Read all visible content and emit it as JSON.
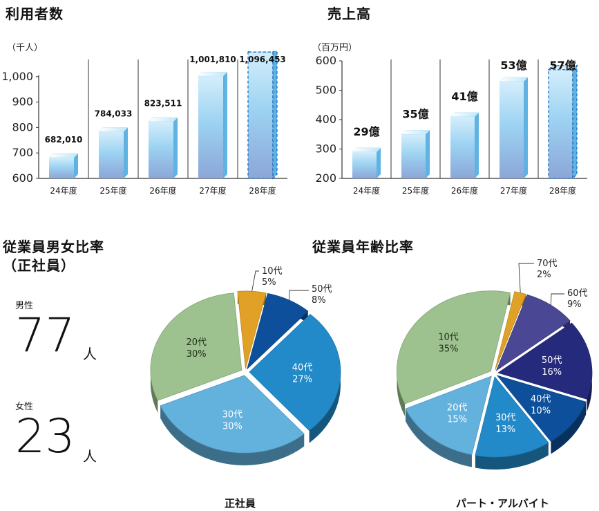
{
  "chart_data": [
    {
      "type": "bar",
      "title": "利用者数",
      "ylabel": "（千人）",
      "categories": [
        "24年度",
        "25年度",
        "26年度",
        "27年度",
        "28年度"
      ],
      "values": [
        682010,
        784033,
        823511,
        1001810,
        1096453
      ],
      "value_labels": [
        "682,010",
        "784,033",
        "823,511",
        "1,001,810",
        "1,096,453"
      ],
      "ylim": [
        600,
        1100
      ],
      "yticks": [
        600,
        700,
        800,
        900,
        1000
      ],
      "ytick_labels": [
        "600",
        "700",
        "800",
        "900",
        "1,000"
      ],
      "value_scale": 1000,
      "projected_index": 4
    },
    {
      "type": "bar",
      "title": "売上高",
      "ylabel": "（百万円）",
      "categories": [
        "24年度",
        "25年度",
        "26年度",
        "27年度",
        "28年度"
      ],
      "values": [
        290,
        350,
        410,
        530,
        570
      ],
      "value_labels": [
        "29億",
        "35億",
        "41億",
        "53億",
        "57億"
      ],
      "ylim": [
        200,
        600
      ],
      "yticks": [
        200,
        300,
        400,
        500,
        600
      ],
      "ytick_labels": [
        "200",
        "300",
        "400",
        "500",
        "600"
      ],
      "value_scale": 1,
      "projected_index": 4
    },
    {
      "type": "pie",
      "title": "正社員",
      "slices": [
        {
          "label": "10代",
          "value": 5,
          "pct": "5%",
          "color": "#e0a126",
          "callout": true
        },
        {
          "label": "50代",
          "value": 8,
          "pct": "8%",
          "color": "#0d4f9a",
          "callout": true
        },
        {
          "label": "40代",
          "value": 27,
          "pct": "27%",
          "color": "#238ac9",
          "callout": false
        },
        {
          "label": "30代",
          "value": 30,
          "pct": "30%",
          "color": "#63b1dd",
          "callout": false
        },
        {
          "label": "20代",
          "value": 30,
          "pct": "30%",
          "color": "#9dc28f",
          "callout": false
        }
      ]
    },
    {
      "type": "pie",
      "title": "パート・アルバイト",
      "slices": [
        {
          "label": "70代",
          "value": 2,
          "pct": "2%",
          "color": "#e0a126",
          "callout": true
        },
        {
          "label": "60代",
          "value": 9,
          "pct": "9%",
          "color": "#4a4794",
          "callout": true
        },
        {
          "label": "50代",
          "value": 16,
          "pct": "16%",
          "color": "#262a7c",
          "callout": false
        },
        {
          "label": "40代",
          "value": 10,
          "pct": "10%",
          "color": "#0d4f9a",
          "callout": false
        },
        {
          "label": "30代",
          "value": 13,
          "pct": "13%",
          "color": "#238ac9",
          "callout": false
        },
        {
          "label": "20代",
          "value": 15,
          "pct": "15%",
          "color": "#63b1dd",
          "callout": false
        },
        {
          "label": "10代",
          "value": 35,
          "pct": "35%",
          "color": "#9dc28f",
          "callout": false
        }
      ]
    }
  ],
  "headings": {
    "gender_title_line1": "従業員男女比率",
    "gender_title_line2": "（正社員）",
    "age_title": "従業員年齢比率"
  },
  "gender": {
    "male_label": "男性",
    "male_count": "77",
    "female_label": "女性",
    "female_count": "23",
    "unit": "人"
  },
  "colors": {
    "bar_light": "#d4eefb",
    "bar_mid": "#9dd3f2",
    "bar_dark": "#8ba6d8",
    "bar_side": "#5fb3e3",
    "projected_border": "#1d6fc0"
  }
}
